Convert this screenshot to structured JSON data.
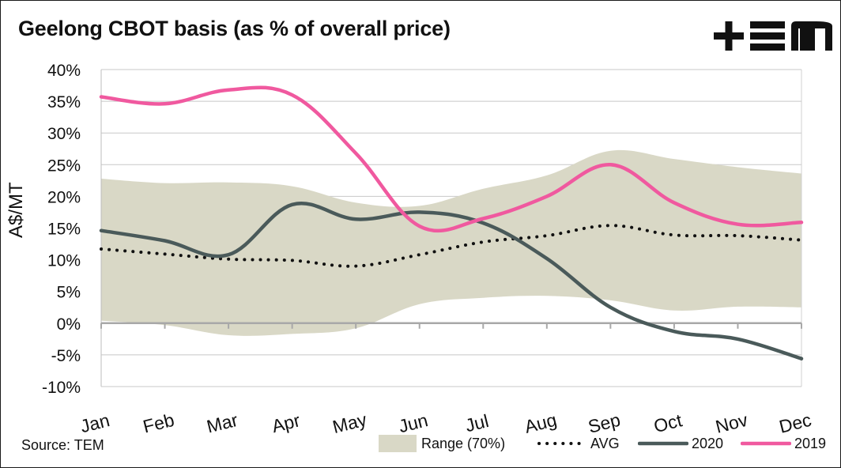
{
  "title": "Geelong CBOT basis (as % of overall price)",
  "logo_text": "+EM",
  "source": "Source: TEM",
  "chart_data": {
    "type": "line",
    "title": "Geelong CBOT basis (as % of overall price)",
    "xlabel": "",
    "ylabel": "A$/MT",
    "categories": [
      "Jan",
      "Feb",
      "Mar",
      "Apr",
      "May",
      "Jun",
      "Jul",
      "Aug",
      "Sep",
      "Oct",
      "Nov",
      "Dec"
    ],
    "ylim": [
      -10,
      40
    ],
    "yticks": [
      -10,
      -5,
      0,
      5,
      10,
      15,
      20,
      25,
      30,
      35,
      40
    ],
    "ytick_labels": [
      "-10%",
      "-5%",
      "0%",
      "5%",
      "10%",
      "15%",
      "20%",
      "25%",
      "30%",
      "35%",
      "40%"
    ],
    "grid": true,
    "legend_position": "bottom-right",
    "range": {
      "name": "Range (70%)",
      "upper": [
        22.8,
        22.1,
        22.2,
        21.6,
        19.0,
        18.5,
        21.2,
        23.3,
        27.2,
        25.9,
        24.6,
        23.6
      ],
      "lower": [
        0.4,
        -0.3,
        -1.9,
        -1.7,
        -0.8,
        3.0,
        4.0,
        4.3,
        3.6,
        2.0,
        2.6,
        2.5
      ]
    },
    "series": [
      {
        "name": "AVG",
        "style": "dotted",
        "color": "#111111",
        "values": [
          11.7,
          10.9,
          10.1,
          9.9,
          9.0,
          10.8,
          12.8,
          13.8,
          15.4,
          13.9,
          13.8,
          13.1
        ]
      },
      {
        "name": "2020",
        "style": "solid",
        "color": "#4a5a5a",
        "values": [
          14.6,
          13.0,
          10.8,
          18.7,
          16.4,
          17.5,
          15.8,
          10.2,
          2.5,
          -1.3,
          -2.5,
          -5.6
        ]
      },
      {
        "name": "2019",
        "style": "solid",
        "color": "#f0599f",
        "values": [
          35.7,
          34.6,
          36.8,
          36.0,
          26.8,
          15.3,
          16.5,
          20.0,
          25.0,
          19.0,
          15.6,
          15.9
        ]
      }
    ]
  }
}
